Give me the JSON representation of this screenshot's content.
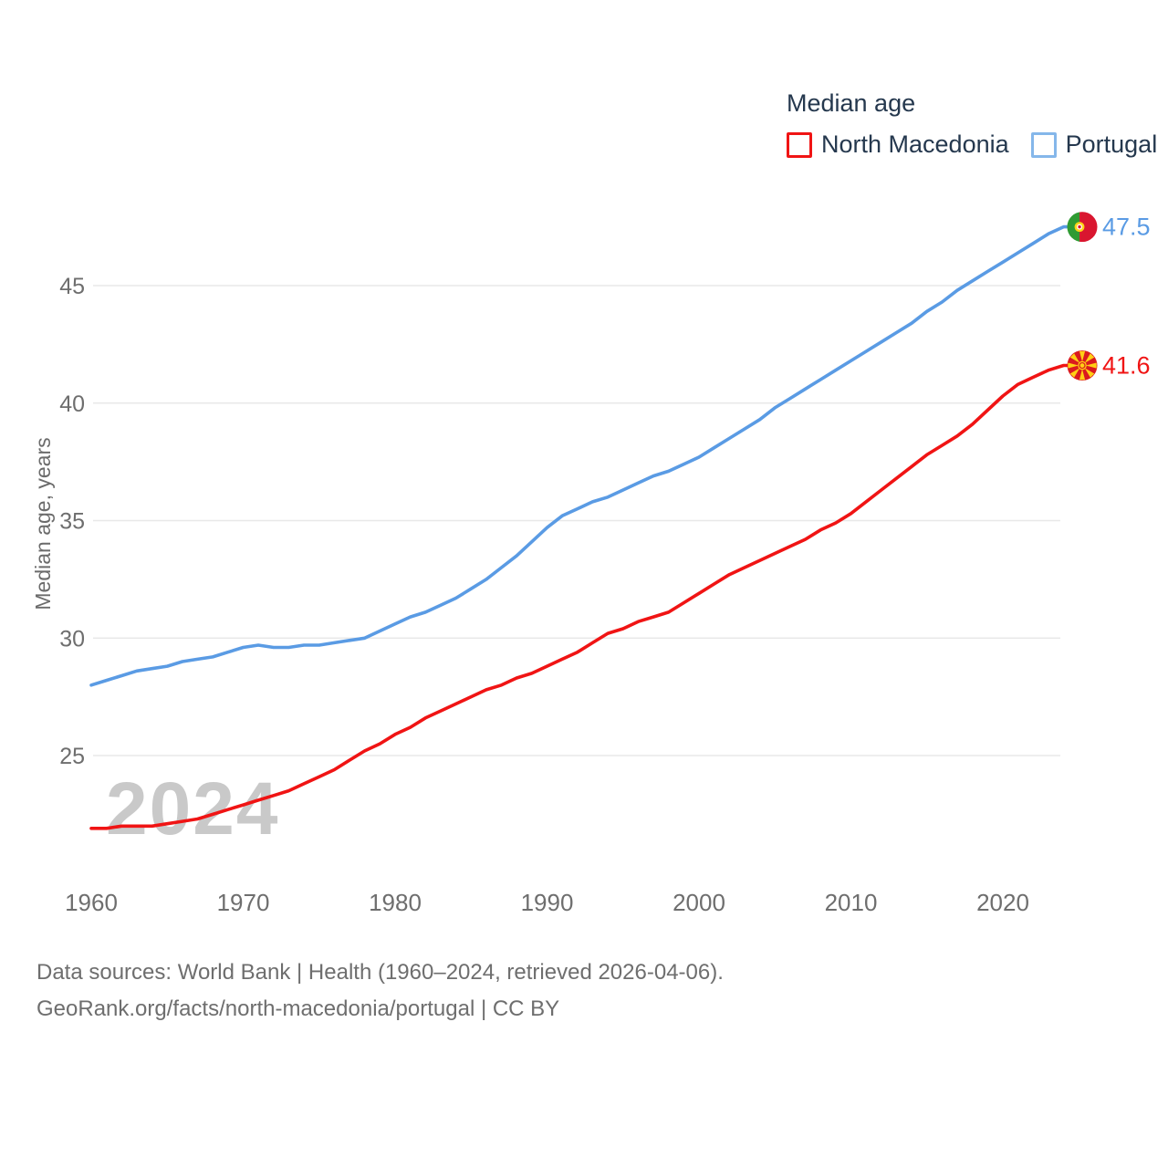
{
  "legend": {
    "title": "Median age",
    "items": [
      {
        "label": "North Macedonia",
        "swatch_color": "#f01414"
      },
      {
        "label": "Portugal",
        "swatch_color": "#85b7ea"
      }
    ]
  },
  "watermark": "2024",
  "end_labels": [
    {
      "series": "Portugal",
      "value": "47.5",
      "color": "#4f97e0",
      "flag": "portugal"
    },
    {
      "series": "North Macedonia",
      "value": "41.6",
      "color": "#f01414",
      "flag": "north-macedonia"
    }
  ],
  "footer": {
    "line1": "Data sources: World Bank | Health (1960–2024, retrieved 2026-04-06).",
    "line2": "GeoRank.org/facts/north-macedonia/portugal | CC BY"
  },
  "chart_data": {
    "type": "line",
    "title": "Median age",
    "xlabel": "",
    "ylabel": "Median age, years",
    "x_start": 1960,
    "x_end": 2024,
    "xticks": [
      1960,
      1970,
      1980,
      1990,
      2000,
      2010,
      2020
    ],
    "yticks": [
      25,
      30,
      35,
      40,
      45
    ],
    "ylim": [
      21.5,
      48.5
    ],
    "grid": true,
    "legend_position": "top-right",
    "series": [
      {
        "name": "North Macedonia",
        "color": "#f01414",
        "end_value": 41.6,
        "values": [
          21.9,
          21.9,
          22.0,
          22.0,
          22.0,
          22.1,
          22.2,
          22.3,
          22.5,
          22.7,
          22.9,
          23.1,
          23.3,
          23.5,
          23.8,
          24.1,
          24.4,
          24.8,
          25.2,
          25.5,
          25.9,
          26.2,
          26.6,
          26.9,
          27.2,
          27.5,
          27.8,
          28.0,
          28.3,
          28.5,
          28.8,
          29.1,
          29.4,
          29.8,
          30.2,
          30.4,
          30.7,
          30.9,
          31.1,
          31.5,
          31.9,
          32.3,
          32.7,
          33.0,
          33.3,
          33.6,
          33.9,
          34.2,
          34.6,
          34.9,
          35.3,
          35.8,
          36.3,
          36.8,
          37.3,
          37.8,
          38.2,
          38.6,
          39.1,
          39.7,
          40.3,
          40.8,
          41.1,
          41.4,
          41.6
        ]
      },
      {
        "name": "Portugal",
        "color": "#5a9be4",
        "end_value": 47.5,
        "values": [
          28.0,
          28.2,
          28.4,
          28.6,
          28.7,
          28.8,
          29.0,
          29.1,
          29.2,
          29.4,
          29.6,
          29.7,
          29.6,
          29.6,
          29.7,
          29.7,
          29.8,
          29.9,
          30.0,
          30.3,
          30.6,
          30.9,
          31.1,
          31.4,
          31.7,
          32.1,
          32.5,
          33.0,
          33.5,
          34.1,
          34.7,
          35.2,
          35.5,
          35.8,
          36.0,
          36.3,
          36.6,
          36.9,
          37.1,
          37.4,
          37.7,
          38.1,
          38.5,
          38.9,
          39.3,
          39.8,
          40.2,
          40.6,
          41.0,
          41.4,
          41.8,
          42.2,
          42.6,
          43.0,
          43.4,
          43.9,
          44.3,
          44.8,
          45.2,
          45.6,
          46.0,
          46.4,
          46.8,
          47.2,
          47.5
        ]
      }
    ]
  },
  "colors": {
    "grid": "#e8e8e8",
    "tick_text": "#6e6e6e",
    "legend_text": "#25384e",
    "watermark": "#c9c9c9"
  }
}
